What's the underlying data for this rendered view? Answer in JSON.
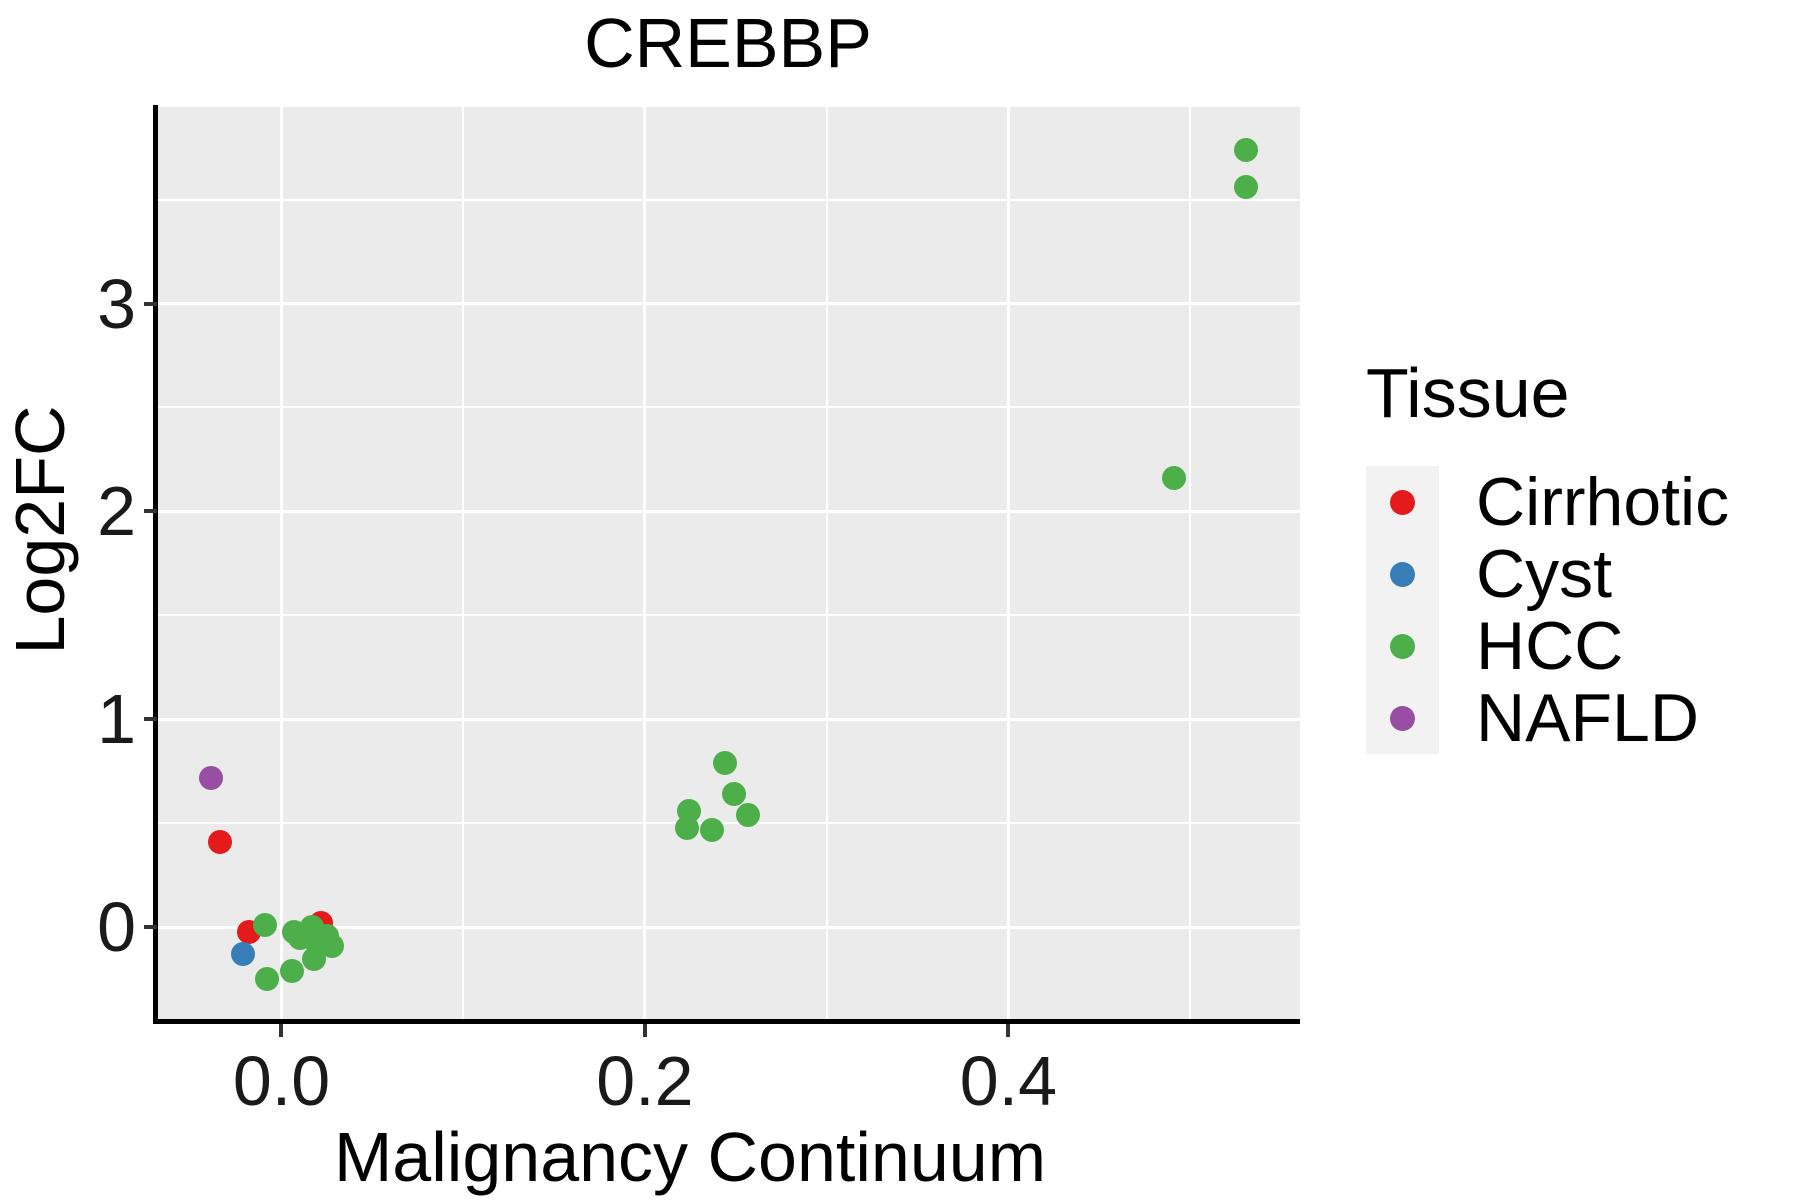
{
  "title": "CREBBP",
  "axes": {
    "x_label": "Malignancy Continuum",
    "y_label": "Log2FC"
  },
  "legend": {
    "title": "Tissue",
    "items": [
      {
        "label": "Cirrhotic",
        "color": "#E41A1C"
      },
      {
        "label": "Cyst",
        "color": "#377EB8"
      },
      {
        "label": "HCC",
        "color": "#4DAF4A"
      },
      {
        "label": "NAFLD",
        "color": "#984EA3"
      }
    ]
  },
  "colors": {
    "panel_background": "#EBEBEB",
    "gridline": "#FFFFFF",
    "axis_line": "#000000",
    "legend_key_background": "#F2F2F2",
    "cirrhotic": "#E41A1C",
    "cyst": "#377EB8",
    "hcc": "#4DAF4A",
    "nafld": "#984EA3"
  },
  "chart_data": {
    "type": "scatter",
    "title": "CREBBP",
    "xlabel": "Malignancy Continuum",
    "ylabel": "Log2FC",
    "xlim": [
      -0.0685,
      0.5605
    ],
    "ylim": [
      -0.455,
      3.945
    ],
    "grid": true,
    "legend_position": "right",
    "x_ticks": [
      {
        "value": 0.0,
        "label": "0.0"
      },
      {
        "value": 0.2,
        "label": "0.2"
      },
      {
        "value": 0.4,
        "label": "0.4"
      }
    ],
    "y_ticks": [
      {
        "value": 0,
        "label": "0"
      },
      {
        "value": 1,
        "label": "1"
      },
      {
        "value": 2,
        "label": "2"
      },
      {
        "value": 3,
        "label": "3"
      }
    ],
    "x_minor": [
      0.1,
      0.3,
      0.5
    ],
    "y_minor": [
      0.5,
      1.5,
      2.5,
      3.5
    ],
    "series": [
      {
        "name": "Cirrhotic",
        "color": "#E41A1C",
        "points": [
          [
            -0.034,
            0.41
          ],
          [
            -0.018,
            -0.02
          ],
          [
            0.022,
            0.02
          ]
        ]
      },
      {
        "name": "Cyst",
        "color": "#377EB8",
        "points": [
          [
            -0.021,
            -0.13
          ]
        ]
      },
      {
        "name": "NAFLD",
        "color": "#984EA3",
        "points": [
          [
            -0.039,
            0.72
          ]
        ]
      },
      {
        "name": "HCC",
        "color": "#4DAF4A",
        "points": [
          [
            0.531,
            3.74
          ],
          [
            0.531,
            3.56
          ],
          [
            0.491,
            2.16
          ],
          [
            0.244,
            0.79
          ],
          [
            0.249,
            0.64
          ],
          [
            0.257,
            0.54
          ],
          [
            0.224,
            0.56
          ],
          [
            0.223,
            0.48
          ],
          [
            0.237,
            0.47
          ],
          [
            -0.009,
            0.01
          ],
          [
            -0.008,
            -0.25
          ],
          [
            0.006,
            -0.21
          ],
          [
            0.007,
            -0.02
          ],
          [
            0.01,
            -0.05
          ],
          [
            0.017,
            0.0
          ],
          [
            0.025,
            -0.04
          ],
          [
            0.02,
            -0.09
          ],
          [
            0.028,
            -0.09
          ],
          [
            0.018,
            -0.15
          ]
        ]
      }
    ]
  }
}
